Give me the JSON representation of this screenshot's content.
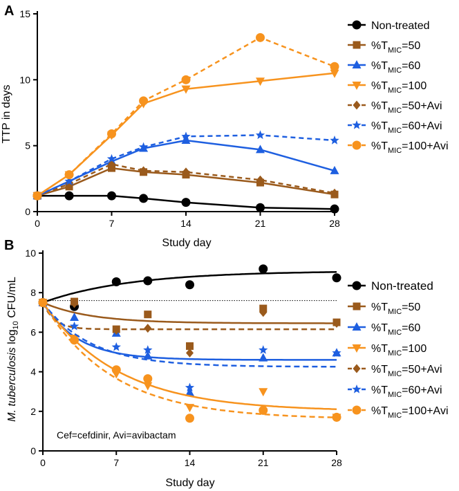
{
  "colors": {
    "nontreated": "#000000",
    "t50": "#9A5A1C",
    "t60": "#1E5FE0",
    "t100": "#F7931E",
    "axis": "#000000"
  },
  "legend_common": {
    "nontreated": "Non-treated",
    "prefix": "%T",
    "sub": "MIC",
    "s50": "=50",
    "s60": "=60",
    "s100": "=100",
    "s50avi": "=50+Avi",
    "s60avi": "=60+Avi",
    "s100avi": "=100+Avi"
  },
  "chart_data": [
    {
      "panel_label": "A",
      "type": "line",
      "xlabel": "Study day",
      "ylabel": "TTP in days",
      "xlim": [
        0,
        28
      ],
      "ylim": [
        0,
        15
      ],
      "xticks": [
        0,
        7,
        14,
        21,
        28
      ],
      "yticks": [
        0,
        5,
        10,
        15
      ],
      "legend_position": "right",
      "x": [
        0,
        3,
        7,
        10,
        14,
        21,
        28
      ],
      "series": [
        {
          "key": "nt",
          "name": "Non-treated",
          "colorKey": "nontreated",
          "marker": "circle",
          "dashed": false,
          "values": [
            1.2,
            1.2,
            1.2,
            1.0,
            0.7,
            0.3,
            0.2
          ]
        },
        {
          "key": "t50",
          "name": "%TMIC=50",
          "colorKey": "t50",
          "marker": "square",
          "dashed": false,
          "values": [
            1.2,
            1.9,
            3.3,
            3.0,
            2.8,
            2.2,
            1.3
          ]
        },
        {
          "key": "t60",
          "name": "%TMIC=60",
          "colorKey": "t60",
          "marker": "triangle-up",
          "dashed": false,
          "values": [
            1.2,
            2.3,
            3.8,
            4.8,
            5.4,
            4.7,
            3.1
          ]
        },
        {
          "key": "t100",
          "name": "%TMIC=100",
          "colorKey": "t100",
          "marker": "triangle-down",
          "dashed": false,
          "values": [
            1.2,
            2.8,
            5.8,
            8.2,
            9.3,
            9.9,
            10.5
          ]
        },
        {
          "key": "t50a",
          "name": "%TMIC=50+Avi",
          "colorKey": "t50",
          "marker": "diamond",
          "dashed": true,
          "values": [
            1.2,
            2.1,
            3.6,
            3.1,
            3.0,
            2.4,
            1.4
          ]
        },
        {
          "key": "t60a",
          "name": "%TMIC=60+Avi",
          "colorKey": "t60",
          "marker": "star",
          "dashed": true,
          "values": [
            1.2,
            2.3,
            4.0,
            4.9,
            5.7,
            5.8,
            5.4
          ]
        },
        {
          "key": "t100a",
          "name": "%TMIC=100+Avi",
          "colorKey": "t100",
          "marker": "circle",
          "dashed": true,
          "values": [
            1.2,
            2.8,
            5.9,
            8.4,
            10.0,
            13.2,
            11.0
          ]
        }
      ]
    },
    {
      "panel_label": "B",
      "type": "scatter",
      "xlabel": "Study day",
      "ylabel_prefix": "M. tuberculosis",
      "ylabel_mid": " log",
      "ylabel_sub": "10",
      "ylabel_suffix": " CFU/mL",
      "xlim": [
        0,
        28
      ],
      "ylim": [
        0,
        10
      ],
      "xticks": [
        0,
        7,
        14,
        21,
        28
      ],
      "yticks": [
        0,
        2,
        4,
        6,
        8,
        10
      ],
      "legend_position": "right",
      "reference_line_y": 7.6,
      "annotation": "Cef=cefdinir, Avi=avibactam",
      "x": [
        0,
        3,
        7,
        10,
        14,
        21,
        28
      ],
      "series": [
        {
          "key": "nt",
          "name": "Non-treated",
          "colorKey": "nontreated",
          "marker": "circle",
          "dashed": false,
          "points": [
            7.5,
            7.3,
            8.55,
            8.6,
            8.4,
            9.2,
            8.75
          ],
          "fit": {
            "start": 7.5,
            "plateau": 9.1,
            "k": 0.12
          }
        },
        {
          "key": "t50",
          "name": "%TMIC=50",
          "colorKey": "t50",
          "marker": "square",
          "dashed": false,
          "points": [
            7.5,
            7.55,
            6.15,
            6.9,
            5.3,
            7.2,
            6.5
          ],
          "fit": {
            "start": 7.5,
            "plateau": 6.45,
            "k": 0.22
          }
        },
        {
          "key": "t60",
          "name": "%TMIC=60",
          "colorKey": "t60",
          "marker": "triangle-up",
          "dashed": false,
          "points": [
            7.5,
            6.75,
            5.95,
            4.8,
            2.95,
            4.7,
            4.95
          ],
          "fit": {
            "start": 7.5,
            "plateau": 4.6,
            "k": 0.3
          }
        },
        {
          "key": "t100",
          "name": "%TMIC=100",
          "colorKey": "t100",
          "marker": "triangle-down",
          "dashed": false,
          "points": [
            7.5,
            5.7,
            3.9,
            3.3,
            2.2,
            3.0,
            1.7
          ],
          "fit": {
            "start": 7.5,
            "plateau": 2.0,
            "k": 0.14
          }
        },
        {
          "key": "t50a",
          "name": "%TMIC=50+Avi",
          "colorKey": "t50",
          "marker": "diamond",
          "dashed": true,
          "points": [
            7.5,
            7.45,
            6.1,
            6.2,
            4.95,
            7.0,
            6.45
          ],
          "fit": {
            "start": 7.5,
            "plateau": 6.15,
            "k": 0.9
          }
        },
        {
          "key": "t60a",
          "name": "%TMIC=60+Avi",
          "colorKey": "t60",
          "marker": "star",
          "dashed": true,
          "points": [
            7.5,
            6.3,
            5.25,
            5.1,
            3.2,
            5.1,
            4.95
          ],
          "fit": {
            "start": 7.5,
            "plateau": 4.25,
            "k": 0.22
          }
        },
        {
          "key": "t100a",
          "name": "%TMIC=100+Avi",
          "colorKey": "t100",
          "marker": "circle",
          "dashed": true,
          "points": [
            7.5,
            5.6,
            4.1,
            3.65,
            1.65,
            2.05,
            1.7
          ],
          "fit": {
            "start": 7.5,
            "plateau": 1.6,
            "k": 0.15
          }
        }
      ]
    }
  ]
}
